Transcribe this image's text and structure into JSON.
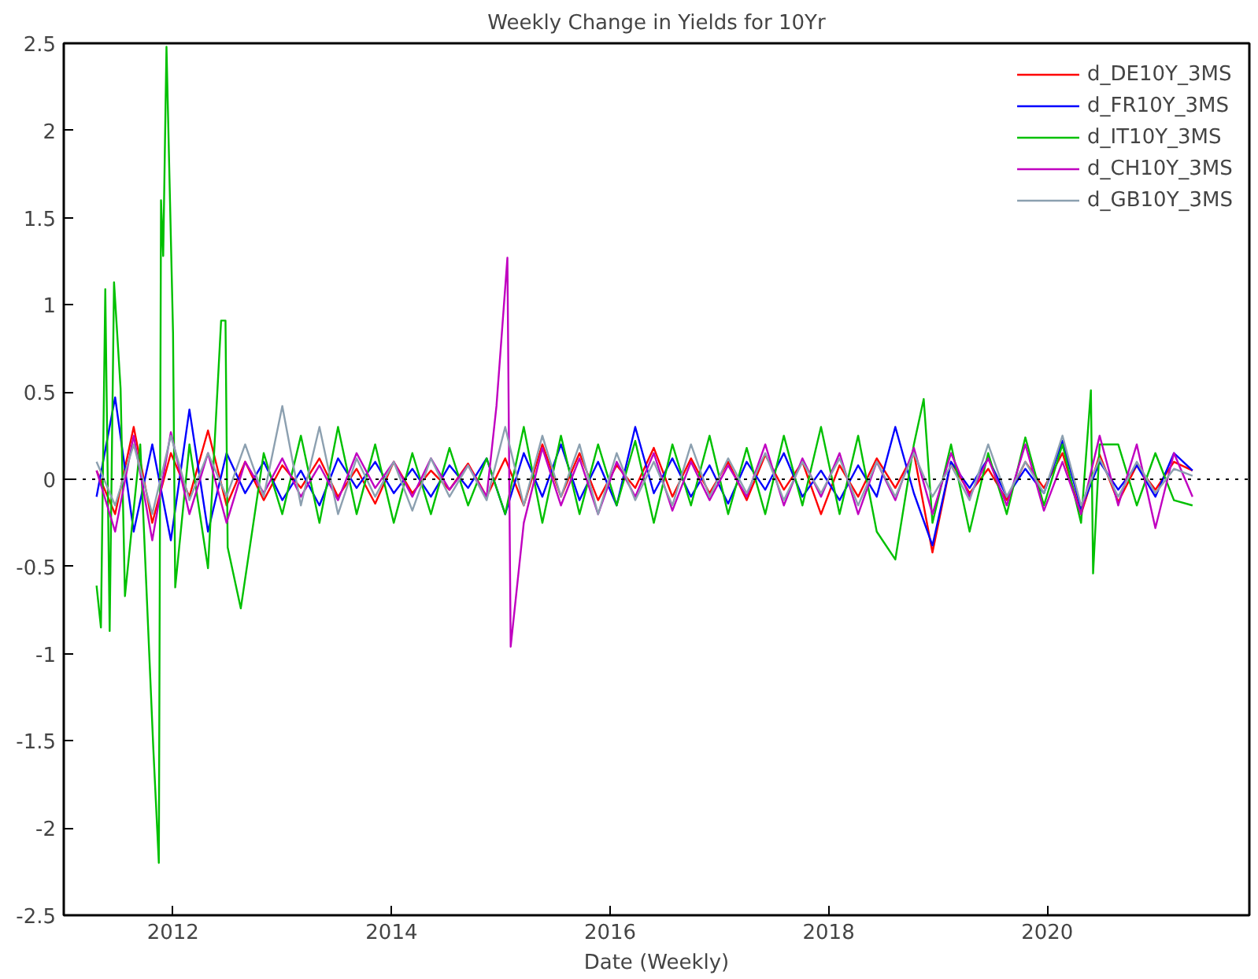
{
  "chart_data": {
    "type": "line",
    "title": "Weekly Change in Yields for 10Yr",
    "xlabel": "Date (Weekly)",
    "xlim": [
      2011.0,
      2021.85
    ],
    "xticks": [
      2012,
      2014,
      2016,
      2018,
      2020
    ],
    "ylim": [
      -2.5,
      2.5
    ],
    "yticks": [
      -2.5,
      -2,
      -1.5,
      -1,
      -0.5,
      0,
      0.5,
      1,
      1.5,
      2,
      2.5
    ],
    "grid": false,
    "legend": "top right",
    "line_style": "solid",
    "ref_lines": [
      {
        "axis": "y",
        "value": 0,
        "color": "#000000",
        "line_style": "dotted"
      }
    ],
    "series": [
      {
        "name": "d_DE10Y_3MS",
        "color": "#ff0000",
        "x": [
          2011.3,
          2011.47,
          2011.64,
          2011.81,
          2011.98,
          2012.15,
          2012.32,
          2012.49,
          2012.66,
          2012.83,
          2013.0,
          2013.17,
          2013.34,
          2013.51,
          2013.68,
          2013.85,
          2014.02,
          2014.19,
          2014.36,
          2014.53,
          2014.7,
          2014.87,
          2015.04,
          2015.21,
          2015.38,
          2015.55,
          2015.72,
          2015.89,
          2016.06,
          2016.23,
          2016.4,
          2016.57,
          2016.74,
          2016.91,
          2017.08,
          2017.25,
          2017.42,
          2017.59,
          2017.76,
          2017.93,
          2018.1,
          2018.27,
          2018.44,
          2018.61,
          2018.78,
          2018.95,
          2019.12,
          2019.29,
          2019.46,
          2019.63,
          2019.8,
          2019.97,
          2020.14,
          2020.31,
          2020.48,
          2020.65,
          2020.82,
          2020.99,
          2021.16,
          2021.33
        ],
        "values": [
          0.05,
          -0.2,
          0.3,
          -0.25,
          0.15,
          -0.1,
          0.28,
          -0.15,
          0.1,
          -0.12,
          0.08,
          -0.05,
          0.12,
          -0.1,
          0.06,
          -0.14,
          0.1,
          -0.08,
          0.05,
          -0.06,
          0.09,
          -0.1,
          0.12,
          -0.15,
          0.2,
          -0.1,
          0.15,
          -0.12,
          0.08,
          -0.05,
          0.18,
          -0.1,
          0.12,
          -0.08,
          0.1,
          -0.12,
          0.14,
          -0.06,
          0.1,
          -0.2,
          0.08,
          -0.1,
          0.12,
          -0.05,
          0.15,
          -0.42,
          0.1,
          -0.08,
          0.06,
          -0.12,
          0.1,
          -0.05,
          0.15,
          -0.2,
          0.14,
          -0.13,
          0.08,
          -0.06,
          0.1,
          0.05
        ]
      },
      {
        "name": "d_FR10Y_3MS",
        "color": "#0000ff",
        "x": [
          2011.3,
          2011.47,
          2011.64,
          2011.81,
          2011.98,
          2012.15,
          2012.32,
          2012.49,
          2012.66,
          2012.83,
          2013.0,
          2013.17,
          2013.34,
          2013.51,
          2013.68,
          2013.85,
          2014.02,
          2014.19,
          2014.36,
          2014.53,
          2014.7,
          2014.87,
          2015.04,
          2015.21,
          2015.38,
          2015.55,
          2015.72,
          2015.89,
          2016.06,
          2016.23,
          2016.4,
          2016.57,
          2016.74,
          2016.91,
          2017.08,
          2017.25,
          2017.42,
          2017.59,
          2017.76,
          2017.93,
          2018.1,
          2018.27,
          2018.44,
          2018.61,
          2018.78,
          2018.95,
          2019.12,
          2019.29,
          2019.46,
          2019.63,
          2019.8,
          2019.97,
          2020.14,
          2020.31,
          2020.48,
          2020.65,
          2020.82,
          2020.99,
          2021.16,
          2021.33
        ],
        "values": [
          -0.1,
          0.47,
          -0.3,
          0.2,
          -0.35,
          0.4,
          -0.3,
          0.15,
          -0.08,
          0.1,
          -0.12,
          0.05,
          -0.15,
          0.12,
          -0.05,
          0.1,
          -0.08,
          0.06,
          -0.1,
          0.08,
          -0.05,
          0.12,
          -0.2,
          0.15,
          -0.1,
          0.2,
          -0.12,
          0.1,
          -0.15,
          0.3,
          -0.08,
          0.12,
          -0.1,
          0.08,
          -0.14,
          0.1,
          -0.06,
          0.15,
          -0.1,
          0.05,
          -0.12,
          0.08,
          -0.1,
          0.3,
          -0.08,
          -0.38,
          0.1,
          -0.05,
          0.12,
          -0.1,
          0.06,
          -0.08,
          0.22,
          -0.17,
          0.1,
          -0.06,
          0.08,
          -0.1,
          0.15,
          0.05
        ]
      },
      {
        "name": "d_IT10Y_3MS",
        "color": "#00c000",
        "x": [
          2011.3,
          2011.34,
          2011.38,
          2011.42,
          2011.46,
          2011.52,
          2011.56,
          2011.7,
          2011.82,
          2011.87,
          2011.89,
          2011.91,
          2011.94,
          2012.0,
          2012.02,
          2012.15,
          2012.32,
          2012.44,
          2012.48,
          2012.5,
          2012.62,
          2012.83,
          2013.0,
          2013.17,
          2013.34,
          2013.51,
          2013.68,
          2013.85,
          2014.02,
          2014.19,
          2014.36,
          2014.53,
          2014.7,
          2014.87,
          2015.04,
          2015.21,
          2015.38,
          2015.55,
          2015.72,
          2015.89,
          2016.06,
          2016.23,
          2016.4,
          2016.57,
          2016.74,
          2016.91,
          2017.08,
          2017.25,
          2017.42,
          2017.59,
          2017.76,
          2017.93,
          2018.1,
          2018.27,
          2018.44,
          2018.61,
          2018.78,
          2018.87,
          2018.95,
          2019.12,
          2019.29,
          2019.46,
          2019.63,
          2019.8,
          2019.97,
          2020.14,
          2020.31,
          2020.4,
          2020.42,
          2020.48,
          2020.65,
          2020.82,
          2020.99,
          2021.16,
          2021.33
        ],
        "values": [
          -0.61,
          -0.85,
          1.09,
          -0.87,
          1.13,
          0.52,
          -0.67,
          0.2,
          -1.55,
          -2.2,
          1.6,
          1.28,
          2.48,
          0.84,
          -0.62,
          0.2,
          -0.51,
          0.91,
          0.91,
          -0.39,
          -0.74,
          0.15,
          -0.2,
          0.25,
          -0.25,
          0.3,
          -0.2,
          0.2,
          -0.25,
          0.15,
          -0.2,
          0.18,
          -0.15,
          0.12,
          -0.2,
          0.3,
          -0.25,
          0.25,
          -0.2,
          0.2,
          -0.15,
          0.22,
          -0.25,
          0.2,
          -0.15,
          0.25,
          -0.2,
          0.18,
          -0.2,
          0.25,
          -0.15,
          0.3,
          -0.2,
          0.25,
          -0.3,
          -0.46,
          0.2,
          0.46,
          -0.25,
          0.2,
          -0.3,
          0.15,
          -0.2,
          0.24,
          -0.15,
          0.2,
          -0.25,
          0.51,
          -0.54,
          0.2,
          0.2,
          -0.15,
          0.15,
          -0.12,
          -0.15
        ]
      },
      {
        "name": "d_CH10Y_3MS",
        "color": "#c000c0",
        "x": [
          2011.3,
          2011.47,
          2011.64,
          2011.81,
          2011.98,
          2012.15,
          2012.32,
          2012.49,
          2012.66,
          2012.83,
          2013.0,
          2013.17,
          2013.34,
          2013.51,
          2013.68,
          2013.85,
          2014.02,
          2014.19,
          2014.36,
          2014.53,
          2014.7,
          2014.87,
          2014.96,
          2015.06,
          2015.09,
          2015.21,
          2015.38,
          2015.55,
          2015.72,
          2015.89,
          2016.06,
          2016.23,
          2016.4,
          2016.57,
          2016.74,
          2016.91,
          2017.08,
          2017.25,
          2017.42,
          2017.59,
          2017.76,
          2017.93,
          2018.1,
          2018.27,
          2018.44,
          2018.61,
          2018.78,
          2018.95,
          2019.12,
          2019.29,
          2019.46,
          2019.63,
          2019.8,
          2019.97,
          2020.14,
          2020.31,
          2020.48,
          2020.65,
          2020.82,
          2020.99,
          2021.16,
          2021.33
        ],
        "values": [
          0.05,
          -0.3,
          0.25,
          -0.35,
          0.27,
          -0.2,
          0.15,
          -0.25,
          0.1,
          -0.08,
          0.12,
          -0.1,
          0.08,
          -0.12,
          0.15,
          -0.05,
          0.1,
          -0.1,
          0.12,
          -0.06,
          0.08,
          -0.1,
          0.42,
          1.27,
          -0.96,
          -0.25,
          0.18,
          -0.15,
          0.12,
          -0.2,
          0.1,
          -0.1,
          0.15,
          -0.18,
          0.1,
          -0.12,
          0.08,
          -0.1,
          0.2,
          -0.15,
          0.12,
          -0.1,
          0.15,
          -0.2,
          0.1,
          -0.12,
          0.18,
          -0.2,
          0.15,
          -0.1,
          0.12,
          -0.15,
          0.2,
          -0.18,
          0.1,
          -0.2,
          0.25,
          -0.15,
          0.2,
          -0.28,
          0.15,
          -0.1
        ]
      },
      {
        "name": "d_GB10Y_3MS",
        "color": "#8ca0b0",
        "x": [
          2011.3,
          2011.47,
          2011.64,
          2011.81,
          2011.98,
          2012.15,
          2012.32,
          2012.49,
          2012.66,
          2012.83,
          2013.0,
          2013.17,
          2013.34,
          2013.51,
          2013.68,
          2013.85,
          2014.02,
          2014.19,
          2014.36,
          2014.53,
          2014.7,
          2014.87,
          2015.04,
          2015.21,
          2015.38,
          2015.55,
          2015.72,
          2015.89,
          2016.06,
          2016.23,
          2016.4,
          2016.57,
          2016.74,
          2016.91,
          2017.08,
          2017.25,
          2017.42,
          2017.59,
          2017.76,
          2017.93,
          2018.1,
          2018.27,
          2018.44,
          2018.61,
          2018.78,
          2018.95,
          2019.12,
          2019.29,
          2019.46,
          2019.63,
          2019.8,
          2019.97,
          2020.14,
          2020.31,
          2020.48,
          2020.65,
          2020.82,
          2020.99,
          2021.16,
          2021.33
        ],
        "values": [
          0.1,
          -0.15,
          0.2,
          -0.2,
          0.25,
          -0.12,
          0.15,
          -0.1,
          0.2,
          -0.1,
          0.42,
          -0.15,
          0.3,
          -0.2,
          0.12,
          -0.1,
          0.1,
          -0.18,
          0.12,
          -0.1,
          0.08,
          -0.12,
          0.3,
          -0.15,
          0.25,
          -0.1,
          0.2,
          -0.2,
          0.15,
          -0.12,
          0.1,
          -0.15,
          0.2,
          -0.1,
          0.12,
          -0.08,
          0.15,
          -0.12,
          0.1,
          -0.08,
          0.12,
          -0.15,
          0.1,
          -0.1,
          0.15,
          -0.1,
          0.08,
          -0.12,
          0.2,
          -0.1,
          0.1,
          -0.08,
          0.25,
          -0.15,
          0.12,
          -0.1,
          0.1,
          -0.08,
          0.06,
          0.02
        ]
      }
    ]
  }
}
